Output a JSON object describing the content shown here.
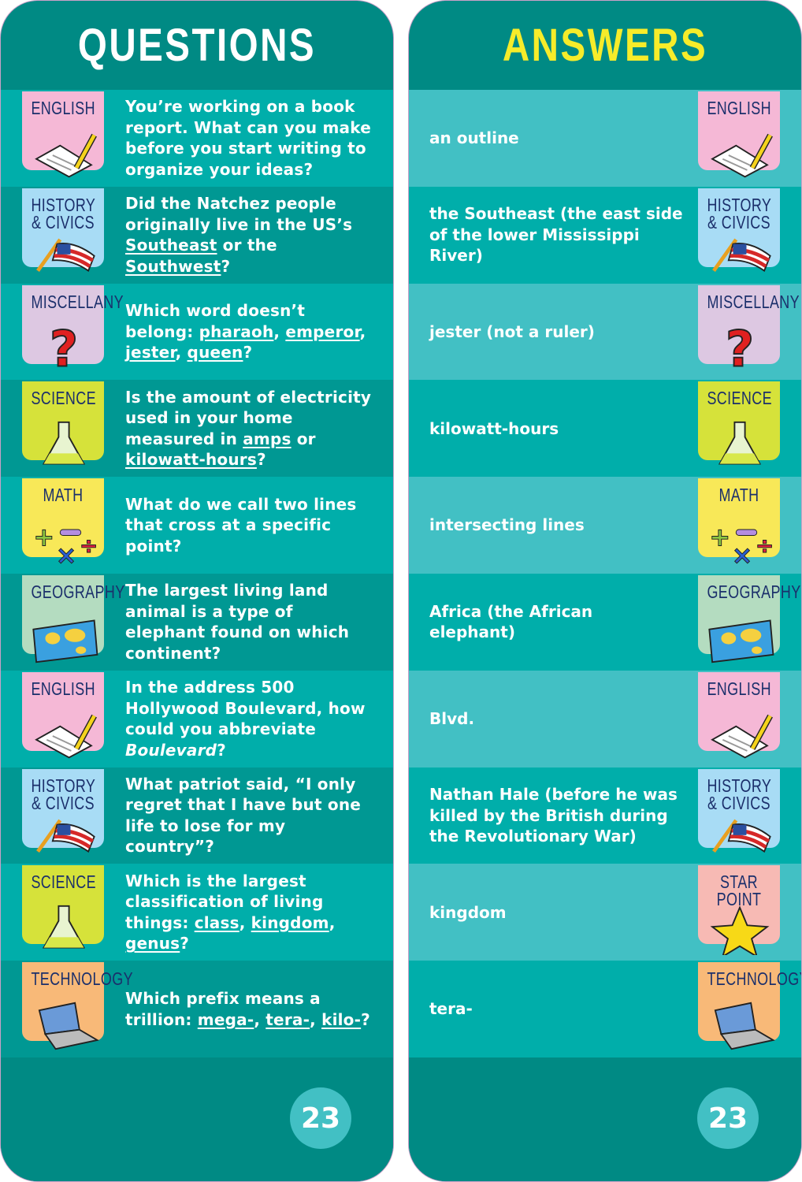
{
  "questions_title": "QUESTIONS",
  "answers_title": "ANSWERS",
  "page_number": "23",
  "colors": {
    "header": "#008a84",
    "row_light": "#00aeaa",
    "row_dark": "#009893",
    "answer_row_light": "#42c0c4",
    "answers_title": "#f6ec2a",
    "label": "#1b2f6b"
  },
  "categories": {
    "english": {
      "label": "ENGLISH",
      "color": "#f5b8d6",
      "icon": "paper-pencil-icon"
    },
    "history": {
      "label": "HISTORY\n& CIVICS",
      "color": "#a8dcf5",
      "icon": "us-flag-icon"
    },
    "misc": {
      "label": "MISCELLANY",
      "color": "#ddc8e2",
      "icon": "question-mark-icon"
    },
    "science": {
      "label": "SCIENCE",
      "color": "#d6e23a",
      "icon": "flask-icon"
    },
    "math": {
      "label": "MATH",
      "color": "#f8e858",
      "icon": "math-symbols-icon"
    },
    "geography": {
      "label": "GEOGRAPHY",
      "color": "#b4dcc0",
      "icon": "world-map-icon"
    },
    "technology": {
      "label": "TECHNOLOGY",
      "color": "#f8b978",
      "icon": "laptop-icon"
    },
    "star": {
      "label": "STAR\nPOINT",
      "color": "#f7bab4",
      "icon": "star-icon"
    }
  },
  "rows": [
    {
      "q_cat": "english",
      "a_cat": "english",
      "question": [
        {
          "t": "You’re working on a book report. What can you make before you start writing to organize your ideas?"
        }
      ],
      "answer": "an outline"
    },
    {
      "q_cat": "history",
      "a_cat": "history",
      "question": [
        {
          "t": "Did the Natchez people originally live in the US’s "
        },
        {
          "t": "Southeast",
          "s": "u"
        },
        {
          "t": " or the "
        },
        {
          "t": "Southwest",
          "s": "u"
        },
        {
          "t": "?"
        }
      ],
      "answer": "the Southeast (the east side of the lower Mississippi River)"
    },
    {
      "q_cat": "misc",
      "a_cat": "misc",
      "question": [
        {
          "t": "Which word doesn’t belong: "
        },
        {
          "t": "pharaoh",
          "s": "u"
        },
        {
          "t": ", "
        },
        {
          "t": "emperor",
          "s": "u"
        },
        {
          "t": ", "
        },
        {
          "t": "jester",
          "s": "u"
        },
        {
          "t": ", "
        },
        {
          "t": "queen",
          "s": "u"
        },
        {
          "t": "?"
        }
      ],
      "answer": "jester (not a ruler)"
    },
    {
      "q_cat": "science",
      "a_cat": "science",
      "question": [
        {
          "t": "Is the amount of electricity used in your home measured in "
        },
        {
          "t": "amps",
          "s": "u"
        },
        {
          "t": " or "
        },
        {
          "t": "kilowatt-hours",
          "s": "u"
        },
        {
          "t": "?"
        }
      ],
      "answer": "kilowatt-hours"
    },
    {
      "q_cat": "math",
      "a_cat": "math",
      "question": [
        {
          "t": "What do we call two lines that cross at a specific point?"
        }
      ],
      "answer": "intersecting lines"
    },
    {
      "q_cat": "geography",
      "a_cat": "geography",
      "question": [
        {
          "t": "The largest living land animal is a type of elephant found on which continent?"
        }
      ],
      "answer": "Africa (the African elephant)"
    },
    {
      "q_cat": "english",
      "a_cat": "english",
      "question": [
        {
          "t": "In the address 500 Hollywood Boulevard, how could you abbreviate "
        },
        {
          "t": "Boulevard",
          "s": "i"
        },
        {
          "t": "?"
        }
      ],
      "answer": "Blvd."
    },
    {
      "q_cat": "history",
      "a_cat": "history",
      "question": [
        {
          "t": "What patriot said, “I only regret that I have but one life to lose for my country”?"
        }
      ],
      "answer": "Nathan Hale (before he was killed by the British during the Revolutionary War)"
    },
    {
      "q_cat": "science",
      "a_cat": "star",
      "question": [
        {
          "t": "Which is the largest classification of living things: "
        },
        {
          "t": "class",
          "s": "u"
        },
        {
          "t": ", "
        },
        {
          "t": "kingdom",
          "s": "u"
        },
        {
          "t": ", "
        },
        {
          "t": "genus",
          "s": "u"
        },
        {
          "t": "?"
        }
      ],
      "answer": "kingdom"
    },
    {
      "q_cat": "technology",
      "a_cat": "technology",
      "question": [
        {
          "t": "Which prefix means a trillion: "
        },
        {
          "t": "mega-",
          "s": "u"
        },
        {
          "t": ", "
        },
        {
          "t": "tera-",
          "s": "u"
        },
        {
          "t": ", "
        },
        {
          "t": "kilo-",
          "s": "u"
        },
        {
          "t": "?"
        }
      ],
      "answer": "tera-"
    }
  ]
}
